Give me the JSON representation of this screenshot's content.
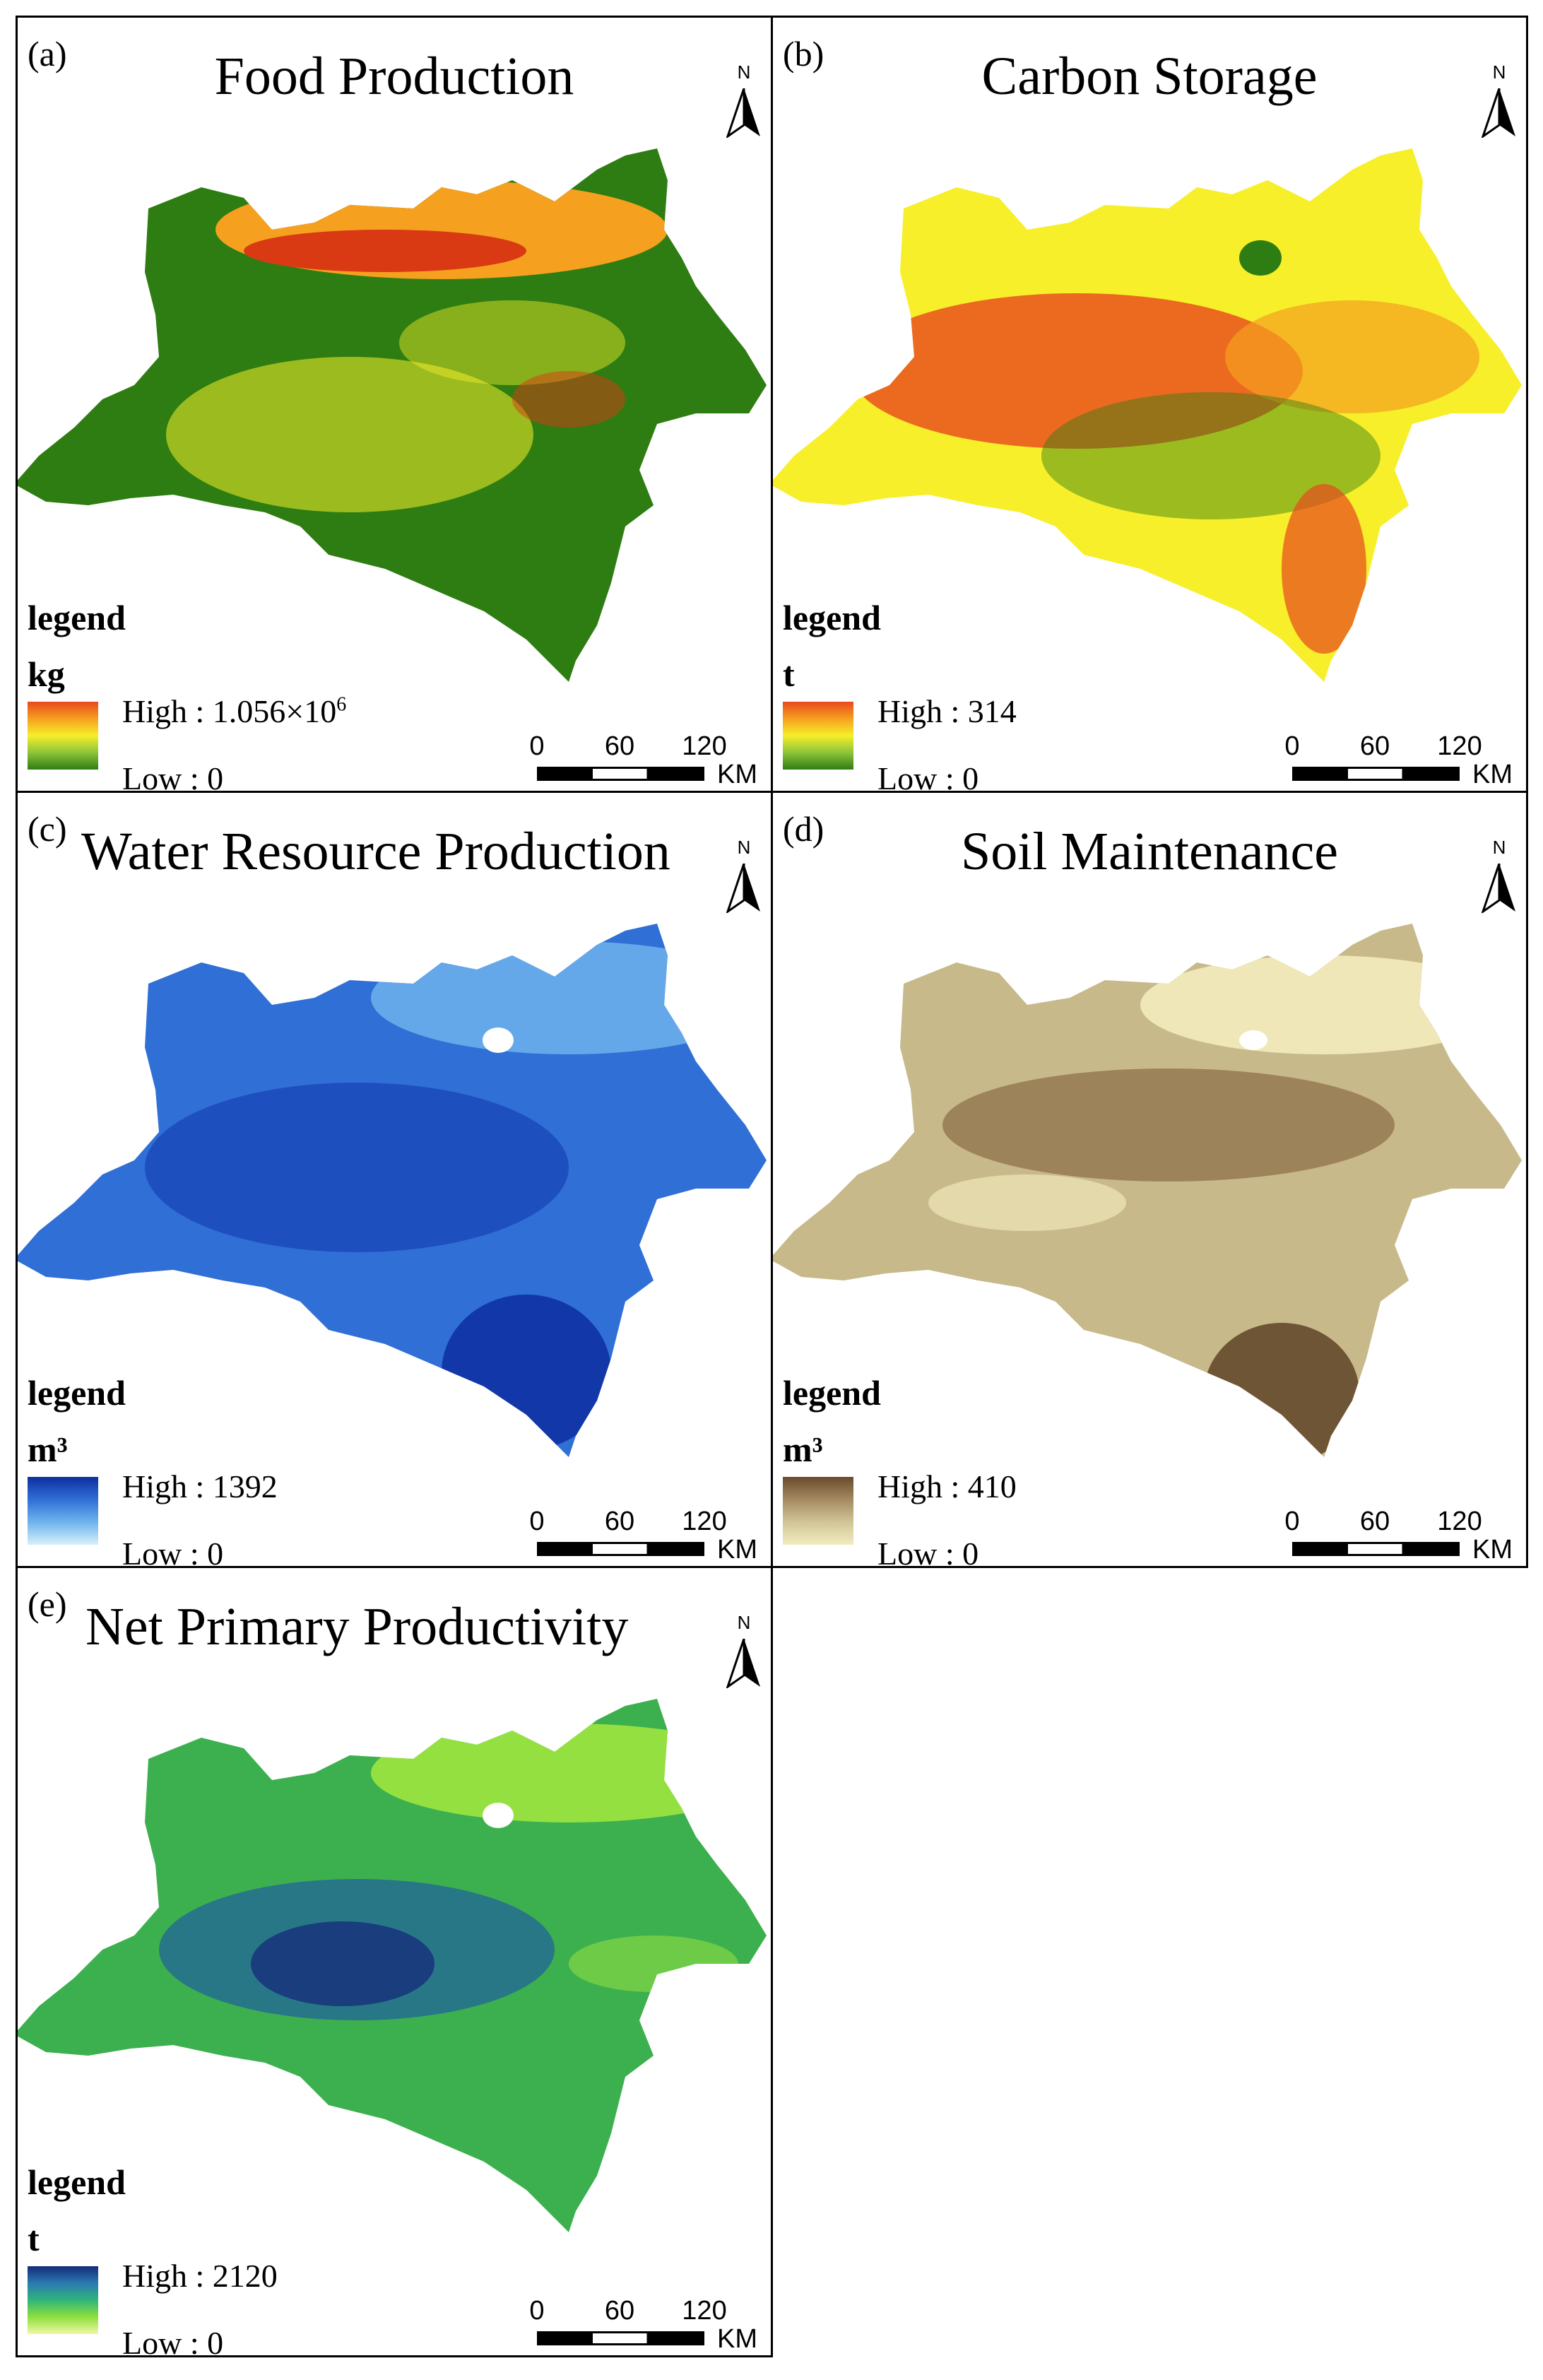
{
  "panels": [
    {
      "id": "(a)",
      "title": "Food Production",
      "north_label": "N",
      "legend_word": "legend",
      "unit": "kg",
      "high_label": "High : 1.056×10",
      "high_exponent": "6",
      "low_label": "Low : 0",
      "ramp_colors": [
        "#e8491e",
        "#f5a01f",
        "#f6ef2a",
        "#8dc43a",
        "#2e7d12"
      ],
      "scale": {
        "ticks": [
          "0",
          "60",
          "120"
        ],
        "unit": "KM"
      }
    },
    {
      "id": "(b)",
      "title": "Carbon Storage",
      "north_label": "N",
      "legend_word": "legend",
      "unit": "t",
      "high_label": "High : 314",
      "low_label": "Low : 0",
      "ramp_colors": [
        "#e8491e",
        "#f5a01f",
        "#f6ef2a",
        "#8dc43a",
        "#2e7d12"
      ],
      "scale": {
        "ticks": [
          "0",
          "60",
          "120"
        ],
        "unit": "KM"
      }
    },
    {
      "id": "(c)",
      "title": "Water Resource Production",
      "north_label": "N",
      "legend_word": "legend",
      "unit": "m³",
      "high_label": "High : 1392",
      "low_label": "Low : 0",
      "ramp_colors": [
        "#0d2ea0",
        "#2f6fd6",
        "#6fb3ec",
        "#d7f0fb"
      ],
      "scale": {
        "ticks": [
          "0",
          "60",
          "120"
        ],
        "unit": "KM"
      }
    },
    {
      "id": "(d)",
      "title": "Soil Maintenance",
      "north_label": "N",
      "legend_word": "legend",
      "unit": "m³",
      "high_label": "High : 410",
      "low_label": "Low : 0",
      "ramp_colors": [
        "#6a4a2a",
        "#a48a62",
        "#d2c597",
        "#f1ecc0"
      ],
      "scale": {
        "ticks": [
          "0",
          "60",
          "120"
        ],
        "unit": "KM"
      }
    },
    {
      "id": "(e)",
      "title": "Net Primary Productivity",
      "north_label": "N",
      "legend_word": "legend",
      "unit": "t",
      "high_label": "High : 2120",
      "low_label": "Low : 0",
      "ramp_colors": [
        "#142a7a",
        "#2a7ab0",
        "#2fb57a",
        "#8ee03c",
        "#f2f7a8"
      ],
      "scale": {
        "ticks": [
          "0",
          "60",
          "120"
        ],
        "unit": "KM"
      }
    }
  ],
  "map_palettes": {
    "a": {
      "base": "#2e7d12",
      "patch1": "#f6ef2a",
      "patch2": "#f5a01f",
      "patch3": "#d93a14"
    },
    "b": {
      "base": "#f6ef2a",
      "patch1": "#e8491e",
      "patch2": "#2e7d12",
      "patch3": "#f5a01f"
    },
    "c": {
      "base": "#2f6fd6",
      "patch1": "#1a44b5",
      "patch2": "#6fb3ec",
      "patch3": "#0d2ea0"
    },
    "d": {
      "base": "#c8b98b",
      "patch1": "#8a6c46",
      "patch2": "#efe7b8",
      "patch3": "#5e4326"
    },
    "e": {
      "base": "#3cb04e",
      "patch1": "#1f5fa0",
      "patch2": "#9ee640",
      "patch3": "#142a7a"
    }
  }
}
